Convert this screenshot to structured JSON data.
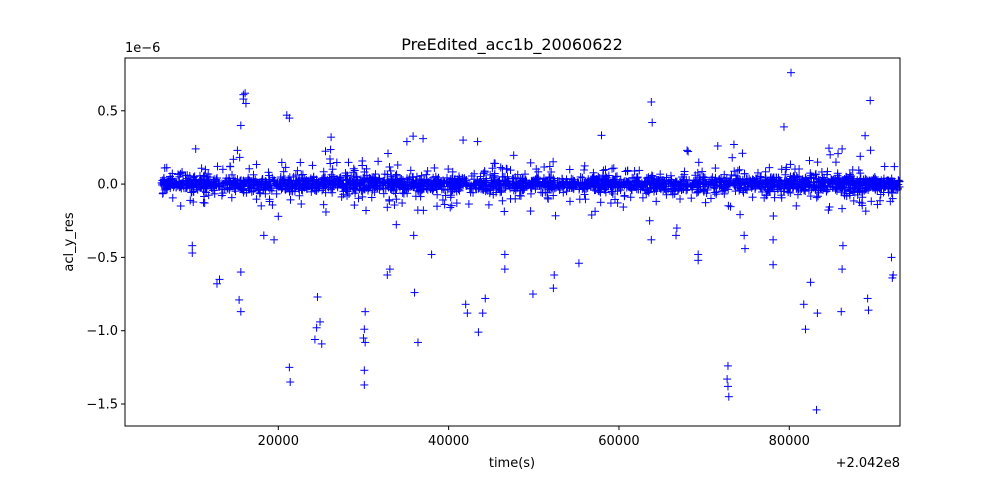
{
  "chart_data": {
    "type": "scatter",
    "title": "PreEdited_acc1b_20060622",
    "xlabel": "time(s)",
    "ylabel": "acl_y_res",
    "x_offset_label": "+2.042e8",
    "y_scale_label": "1e−6",
    "x_ticks": [
      "20000",
      "40000",
      "60000",
      "80000"
    ],
    "y_ticks": [
      "0.5",
      "0.0",
      "−0.5",
      "−1.0",
      "−1.5"
    ],
    "xlim": [
      204202000,
      204293000
    ],
    "ylim": [
      -1.65e-06,
      8.6e-07
    ],
    "marker": "+",
    "color": "#0000ff",
    "grid": false,
    "series": [
      {
        "x": [
          204215200,
          204215600,
          204215900,
          204216100,
          204215900,
          204216200,
          204263800,
          204263900,
          204289500,
          204280200,
          204226200,
          204221000,
          204221300,
          204210300,
          204235100,
          204237000,
          204241700,
          204243400,
          204268000,
          204271600,
          204273500,
          204274500,
          204286200,
          204288900,
          204284800,
          204291200,
          204220000,
          204219500,
          204218300,
          204221300,
          204221400,
          204213100,
          204212800,
          204209900,
          204209900,
          204215600,
          204215400,
          204215600,
          204224600,
          204224900,
          204224500,
          204225100,
          204224300,
          204230000,
          204230100,
          204230100,
          204233100,
          204232800,
          204238000,
          204236400,
          204242000,
          204242200,
          204243500,
          204244000,
          204244300,
          204246600,
          204246600,
          204249900,
          204252300,
          204252400,
          204255300,
          204263800,
          204263600,
          204266800,
          204266700,
          204269300,
          204269300,
          204272800,
          204274700,
          204274800,
          204278100,
          204278100,
          204281700,
          204281900,
          204283200,
          204283300,
          204286200,
          204286100,
          204286300,
          204289200,
          204289300,
          204292000,
          204292200,
          204292100,
          204272800,
          204272900,
          204272700,
          204282500,
          204230200,
          204230200,
          204230100,
          204235900,
          204230300,
          204236000
        ],
        "y": [
          2.3e-07,
          4e-07,
          6.1e-07,
          6.2e-07,
          5.8e-07,
          5.5e-07,
          5.6e-07,
          4.2e-07,
          5.7e-07,
          7.6e-07,
          3.2e-07,
          4.7e-07,
          4.5e-07,
          2.4e-07,
          2.9e-07,
          3.1e-07,
          3e-07,
          2.9e-07,
          2.3e-07,
          2.6e-07,
          2.7e-07,
          2.1e-07,
          2.4e-07,
          3.3e-07,
          2e-07,
          1.2e-07,
          -2.2e-07,
          -3.8e-07,
          -3.5e-07,
          -1.25e-06,
          -1.35e-06,
          -6.5e-07,
          -6.8e-07,
          -4.2e-07,
          -4.7e-07,
          -8.7e-07,
          -7.9e-07,
          -6e-07,
          -7.7e-07,
          -9.4e-07,
          -9.8e-07,
          -1.09e-06,
          -1.06e-06,
          -1.05e-06,
          -1.27e-06,
          -1.37e-06,
          -5.8e-07,
          -6.2e-07,
          -4.8e-07,
          -1.08e-06,
          -8.2e-07,
          -8.8e-07,
          -1.01e-06,
          -8.8e-07,
          -7.8e-07,
          -4.8e-07,
          -5.8e-07,
          -7.5e-07,
          -7.1e-07,
          -6.2e-07,
          -5.4e-07,
          -3.8e-07,
          -2.5e-07,
          -3e-07,
          -3.5e-07,
          -4.8e-07,
          -5.2e-07,
          -1.24e-06,
          -3.5e-07,
          -4.4e-07,
          -3.8e-07,
          -5.5e-07,
          -8.2e-07,
          -9.9e-07,
          -1.54e-06,
          -8.8e-07,
          -5.8e-07,
          -8.7e-07,
          -4.2e-07,
          -7.8e-07,
          -8.6e-07,
          -5e-07,
          -6.2e-07,
          -6.4e-07,
          -1.38e-06,
          -1.45e-06,
          -1.33e-06,
          -6.7e-07,
          -8.7e-07,
          -1.08e-06,
          -9.9e-07,
          -3.5e-07,
          -1.8e-07,
          -7.4e-07
        ]
      }
    ]
  }
}
